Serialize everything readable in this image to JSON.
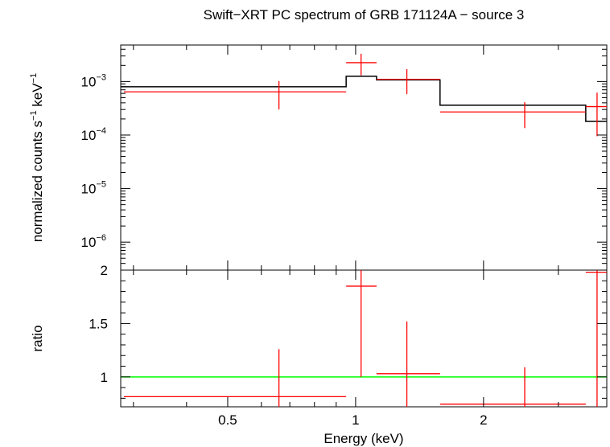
{
  "title": "Swift−XRT PC spectrum of GRB 171124A − source 3",
  "colors": {
    "data": "#ff0000",
    "model": "#000000",
    "reference": "#00ff00",
    "axes": "#000000"
  },
  "chart_data": [
    {
      "type": "line",
      "panel": "spectrum",
      "ylabel_parts": [
        "normalized counts s",
        "−1",
        " keV",
        "−1"
      ],
      "xscale": "log",
      "yscale": "log",
      "xlim": [
        0.28,
        3.9
      ],
      "ylim": [
        3e-07,
        0.0048
      ],
      "yticks": [
        {
          "value": 1e-06,
          "base": "10",
          "exp": "−6"
        },
        {
          "value": 1e-05,
          "base": "10",
          "exp": "−5"
        },
        {
          "value": 0.0001,
          "base": "10",
          "exp": "−4"
        },
        {
          "value": 0.001,
          "base": "10",
          "exp": "−3"
        }
      ],
      "data_points": [
        {
          "x": 0.66,
          "xlo": 0.285,
          "xhi": 0.95,
          "y": 0.00064,
          "ylo": 0.0003,
          "yhi": 0.00102
        },
        {
          "x": 1.03,
          "xlo": 0.95,
          "xhi": 1.12,
          "y": 0.00225,
          "ylo": 0.0013,
          "yhi": 0.0033
        },
        {
          "x": 1.32,
          "xlo": 1.12,
          "xhi": 1.58,
          "y": 0.0011,
          "ylo": 0.00058,
          "yhi": 0.0017
        },
        {
          "x": 2.5,
          "xlo": 1.58,
          "xhi": 3.48,
          "y": 0.00027,
          "ylo": 0.000135,
          "yhi": 0.00041
        },
        {
          "x": 3.7,
          "xlo": 3.48,
          "xhi": 3.9,
          "y": 0.00034,
          "ylo": 9.5e-05,
          "yhi": 0.00062
        }
      ],
      "model_steps": [
        {
          "xlo": 0.28,
          "xhi": 0.95,
          "y": 0.0008
        },
        {
          "xlo": 0.95,
          "xhi": 1.12,
          "y": 0.00125
        },
        {
          "xlo": 1.12,
          "xhi": 1.58,
          "y": 0.00107
        },
        {
          "xlo": 1.58,
          "xhi": 3.48,
          "y": 0.00036
        },
        {
          "xlo": 3.48,
          "xhi": 3.9,
          "y": 0.00018
        }
      ]
    },
    {
      "type": "line",
      "panel": "ratio",
      "ylabel": "ratio",
      "xlabel": "Energy (keV)",
      "xscale": "log",
      "xlim": [
        0.28,
        3.9
      ],
      "ylim": [
        0.72,
        2.0
      ],
      "xticks": [
        {
          "value": 0.5,
          "label": "0.5"
        },
        {
          "value": 1,
          "label": "1"
        },
        {
          "value": 2,
          "label": "2"
        }
      ],
      "yticks": [
        {
          "value": 1,
          "label": "1"
        },
        {
          "value": 1.5,
          "label": "1.5"
        },
        {
          "value": 2,
          "label": "2"
        }
      ],
      "reference_y": 1,
      "data_points": [
        {
          "x": 0.66,
          "xlo": 0.285,
          "xhi": 0.95,
          "y": 0.815,
          "ylo": 0.36,
          "yhi": 1.26
        },
        {
          "x": 1.03,
          "xlo": 0.95,
          "xhi": 1.12,
          "y": 1.85,
          "ylo": 1.0,
          "yhi": 2.7
        },
        {
          "x": 1.32,
          "xlo": 1.12,
          "xhi": 1.58,
          "y": 1.03,
          "ylo": 0.54,
          "yhi": 1.52
        },
        {
          "x": 2.5,
          "xlo": 1.58,
          "xhi": 3.48,
          "y": 0.745,
          "ylo": 0.38,
          "yhi": 1.09
        },
        {
          "x": 3.7,
          "xlo": 3.48,
          "xhi": 3.9,
          "y": 1.98,
          "ylo": 0.55,
          "yhi": 3.6
        }
      ]
    }
  ]
}
